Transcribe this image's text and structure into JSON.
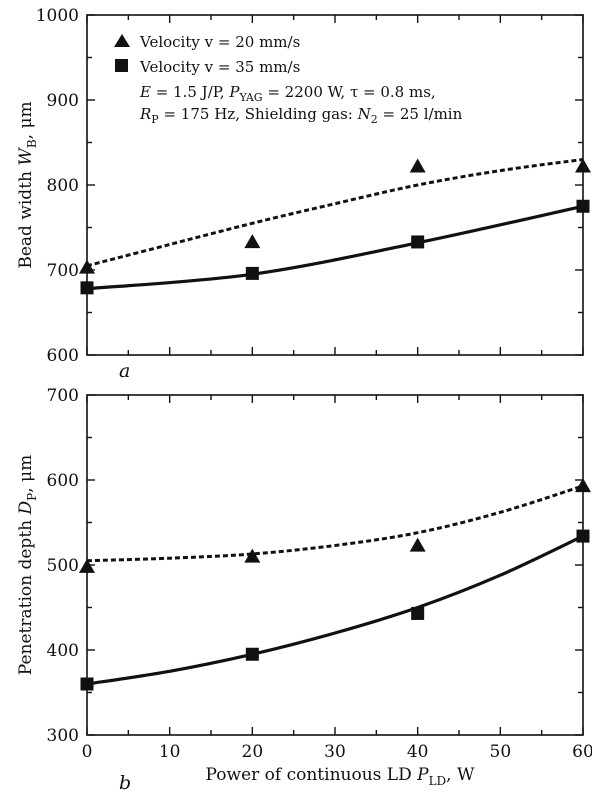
{
  "chart_data": [
    {
      "type": "scatter",
      "panel_label": "a",
      "xlabel": "",
      "ylabel_main": "Bead width ",
      "ylabel_var": "W",
      "ylabel_sub": "B",
      "ylabel_unit": ", μm",
      "xlim": [
        0,
        60
      ],
      "ylim": [
        600,
        1000
      ],
      "yticks": [
        600,
        700,
        800,
        900,
        1000
      ],
      "grid": false,
      "legend_position": "top-left",
      "series": [
        {
          "name": "Velocity v = 20 mm/s",
          "marker": "triangle",
          "x": [
            0,
            20,
            40,
            60
          ],
          "y": [
            702,
            732,
            821,
            821
          ],
          "fit": {
            "style": "dashed",
            "x": [
              0,
              10,
              20,
              30,
              40,
              50,
              60
            ],
            "y": [
              705,
              730,
              755,
              778,
              800,
              817,
              830
            ]
          }
        },
        {
          "name": "Velocity v = 35 mm/s",
          "marker": "square",
          "x": [
            0,
            20,
            40,
            60
          ],
          "y": [
            679,
            696,
            733,
            775
          ],
          "fit": {
            "style": "solid",
            "x": [
              0,
              20,
              40,
              60
            ],
            "y": [
              678,
              695,
              732,
              775
            ]
          }
        }
      ],
      "annotation": {
        "line1": {
          "p1_var": "E",
          "p1": " = 1.5 J/P, ",
          "p2_var": "P",
          "p2_sub": "YAG",
          "p2": " = 2200 W, τ = 0.8 ms,"
        },
        "line2": {
          "p1_var": "R",
          "p1_sub": "P",
          "p1": " = 175 Hz, Shielding gas: ",
          "p2_var": "N",
          "p2_sub": "2",
          "p2": " = 25 l/min"
        }
      }
    },
    {
      "type": "scatter",
      "panel_label": "b",
      "xlabel_main": "Power of continuous LD ",
      "xlabel_var": "P",
      "xlabel_sub": "LD",
      "xlabel_unit": ", W",
      "ylabel_main": "Penetration depth ",
      "ylabel_var": "D",
      "ylabel_sub": "P",
      "ylabel_unit": ", μm",
      "xlim": [
        0,
        60
      ],
      "ylim": [
        300,
        700
      ],
      "xticks": [
        0,
        10,
        20,
        30,
        40,
        50,
        60
      ],
      "yticks": [
        300,
        400,
        500,
        600,
        700
      ],
      "grid": false,
      "series": [
        {
          "name": "Velocity v = 20 mm/s",
          "marker": "triangle",
          "x": [
            0,
            20,
            40,
            60
          ],
          "y": [
            497,
            509,
            522,
            592
          ],
          "fit": {
            "style": "dashed",
            "x": [
              0,
              10,
              20,
              30,
              40,
              50,
              60
            ],
            "y": [
              505,
              508,
              513,
              523,
              538,
              562,
              593
            ]
          }
        },
        {
          "name": "Velocity v = 35 mm/s",
          "marker": "square",
          "x": [
            0,
            20,
            40,
            60
          ],
          "y": [
            360,
            395,
            443,
            534
          ],
          "fit": {
            "style": "solid",
            "x": [
              0,
              10,
              20,
              30,
              40,
              50,
              60
            ],
            "y": [
              360,
              375,
              395,
              420,
              450,
              488,
              534
            ]
          }
        }
      ]
    }
  ]
}
